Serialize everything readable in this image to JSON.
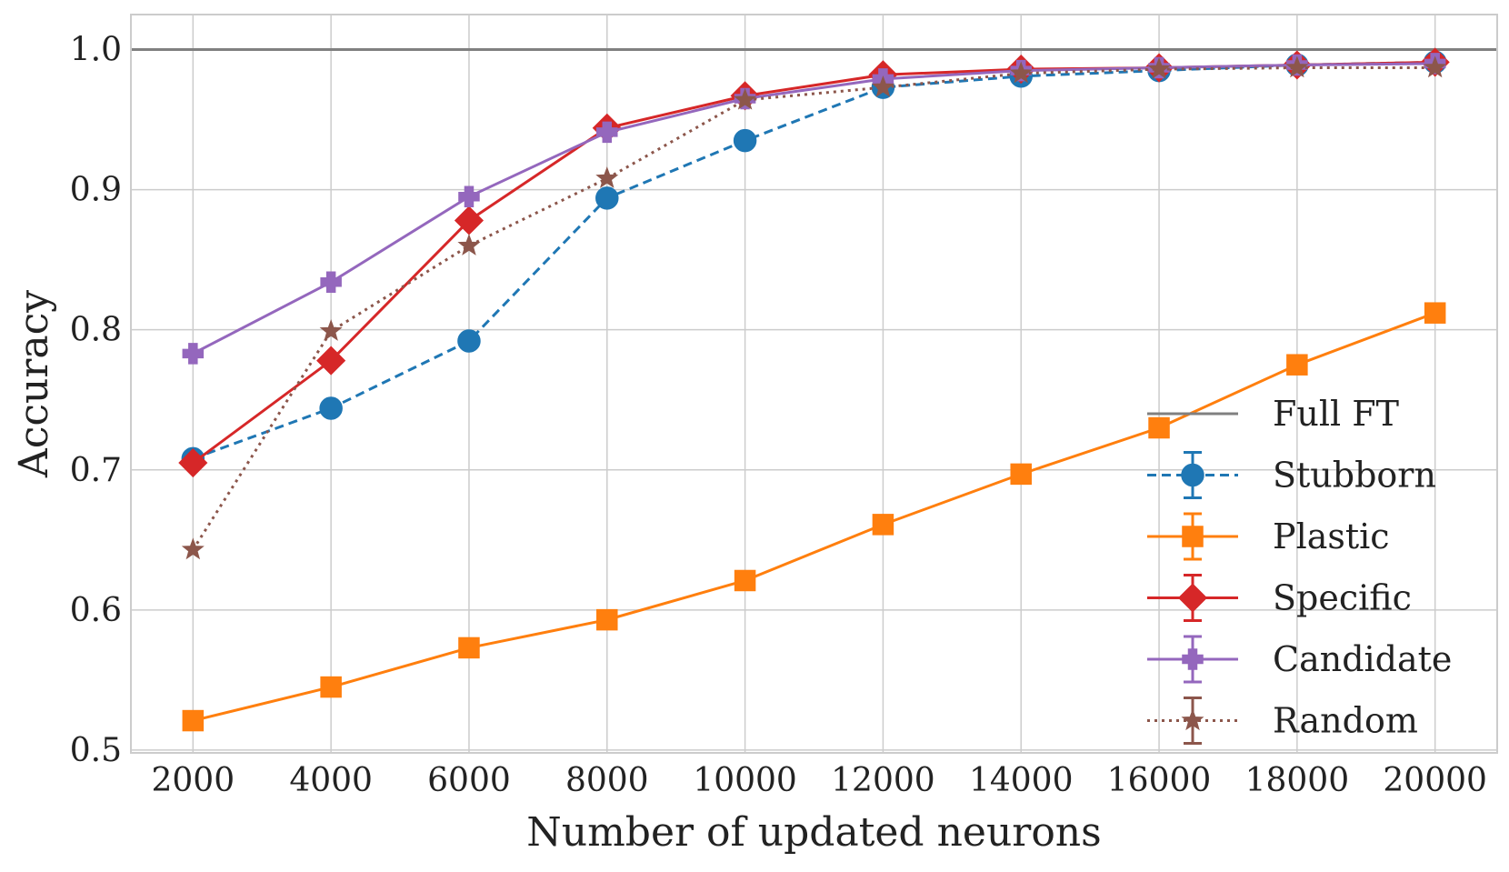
{
  "chart_data": {
    "type": "line",
    "title": "",
    "xlabel": "Number of updated neurons",
    "ylabel": "Accuracy",
    "x": [
      2000,
      4000,
      6000,
      8000,
      10000,
      12000,
      14000,
      16000,
      18000,
      20000
    ],
    "x_tick_labels": [
      "2000",
      "4000",
      "6000",
      "8000",
      "10000",
      "12000",
      "14000",
      "16000",
      "18000",
      "20000"
    ],
    "y_ticks": [
      0.5,
      0.6,
      0.7,
      0.8,
      0.9,
      1.0
    ],
    "y_tick_labels": [
      "0.5",
      "0.6",
      "0.7",
      "0.8",
      "0.9",
      "1.0"
    ],
    "xlim": [
      1100,
      20900
    ],
    "ylim": [
      0.498,
      1.025
    ],
    "grid": true,
    "legend_position": "lower-right",
    "reference_line": {
      "name": "Full FT",
      "y": 1.0,
      "color": "#808080"
    },
    "series": [
      {
        "name": "Stubborn",
        "color": "#1f77b4",
        "marker": "circle",
        "linestyle": "dashed",
        "values": [
          0.708,
          0.744,
          0.792,
          0.894,
          0.935,
          0.973,
          0.981,
          0.985,
          0.989,
          0.991
        ]
      },
      {
        "name": "Plastic",
        "color": "#ff7f0e",
        "marker": "square",
        "linestyle": "solid",
        "values": [
          0.521,
          0.545,
          0.573,
          0.593,
          0.621,
          0.661,
          0.697,
          0.73,
          0.775,
          0.812
        ]
      },
      {
        "name": "Specific",
        "color": "#d62728",
        "marker": "diamond",
        "linestyle": "solid",
        "values": [
          0.705,
          0.778,
          0.878,
          0.944,
          0.967,
          0.982,
          0.986,
          0.987,
          0.989,
          0.991
        ]
      },
      {
        "name": "Candidate",
        "color": "#9467bd",
        "marker": "plus",
        "linestyle": "solid",
        "values": [
          0.783,
          0.834,
          0.895,
          0.941,
          0.965,
          0.979,
          0.985,
          0.987,
          0.989,
          0.99
        ]
      },
      {
        "name": "Random",
        "color": "#8c564b",
        "marker": "star",
        "linestyle": "dotted",
        "values": [
          0.643,
          0.799,
          0.86,
          0.908,
          0.964,
          0.973,
          0.983,
          0.986,
          0.987,
          0.987
        ]
      }
    ]
  }
}
